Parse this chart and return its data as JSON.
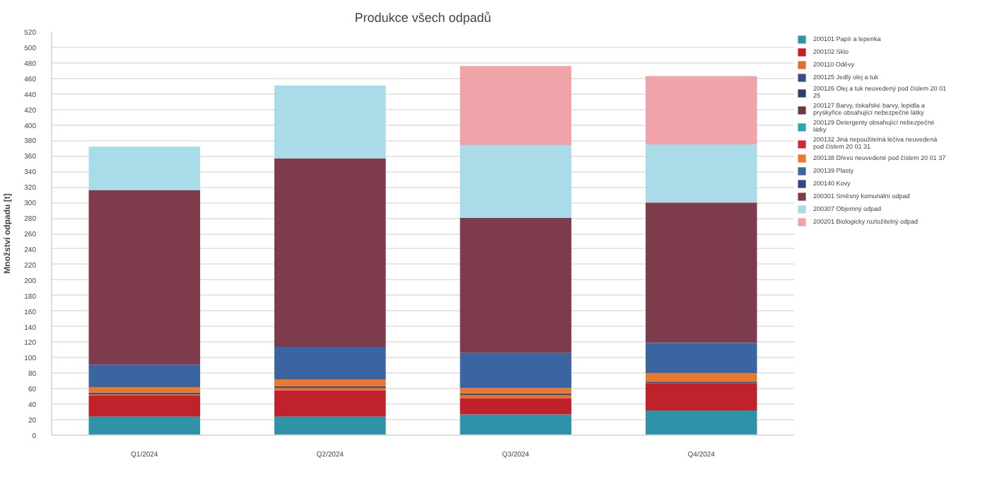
{
  "chart_data": {
    "type": "bar",
    "stacked": true,
    "title": "Produkce všech odpadů",
    "ylabel": "Množství odpadu [t]",
    "categories": [
      "Q1/2024",
      "Q2/2024",
      "Q3/2024",
      "Q4/2024"
    ],
    "ylim": [
      0,
      520
    ],
    "yticks": [
      0,
      20,
      40,
      60,
      80,
      100,
      120,
      140,
      160,
      180,
      200,
      220,
      240,
      260,
      280,
      300,
      320,
      340,
      360,
      380,
      400,
      420,
      440,
      460,
      480,
      500,
      520
    ],
    "grid": "y",
    "legend": "right",
    "series": [
      {
        "name": "200101 Papír a lepenka",
        "color": "#2e93a8",
        "values": [
          24,
          24,
          27,
          32
        ]
      },
      {
        "name": "200102 Sklo",
        "color": "#c0212a",
        "values": [
          27,
          34,
          21,
          35
        ]
      },
      {
        "name": "200110 Oděvy",
        "color": "#e06f2b",
        "values": [
          2,
          3,
          4,
          0
        ]
      },
      {
        "name": "200125 Jedlý olej a tuk",
        "color": "#3a4f7f",
        "values": [
          2,
          2,
          2,
          2
        ]
      },
      {
        "name": "200126 Olej a tuk neuvedený pod číslem 20 01 25",
        "color": "#2d3f6e",
        "values": [
          0,
          0,
          0,
          0
        ]
      },
      {
        "name": "200127 Barvy, tiskařské barvy, lepidla a pryskyřice obsahující nebezpečné látky",
        "color": "#6b3a47",
        "values": [
          0,
          0,
          0,
          0
        ]
      },
      {
        "name": "200129 Detergenty obsahující nebezpečné látky",
        "color": "#2ea3b8",
        "values": [
          0,
          0,
          0,
          0
        ]
      },
      {
        "name": "200132 Jiná nepoužitelná léčiva neuvedená pod číslem 20 01 31",
        "color": "#d4283a",
        "values": [
          0,
          0,
          0,
          0
        ]
      },
      {
        "name": "200138 Dřevo neuvedené pod číslem 20 01 37",
        "color": "#e87a30",
        "values": [
          7,
          9,
          7,
          11
        ]
      },
      {
        "name": "200139 Plasty",
        "color": "#3a65a0",
        "values": [
          29,
          42,
          45,
          39
        ]
      },
      {
        "name": "200140 Kovy",
        "color": "#2f4a7f",
        "values": [
          0,
          0,
          0,
          0
        ]
      },
      {
        "name": "200301 Směsný komunální odpad",
        "color": "#7d3b4b",
        "values": [
          225,
          243,
          174,
          181
        ]
      },
      {
        "name": "200307 Objemný odpad",
        "color": "#a9dbe8",
        "values": [
          56,
          94,
          94,
          75
        ]
      },
      {
        "name": "200201 Biologicky rozložitelný odpad",
        "color": "#f0a3a8",
        "values": [
          0,
          0,
          102,
          88
        ]
      }
    ]
  }
}
